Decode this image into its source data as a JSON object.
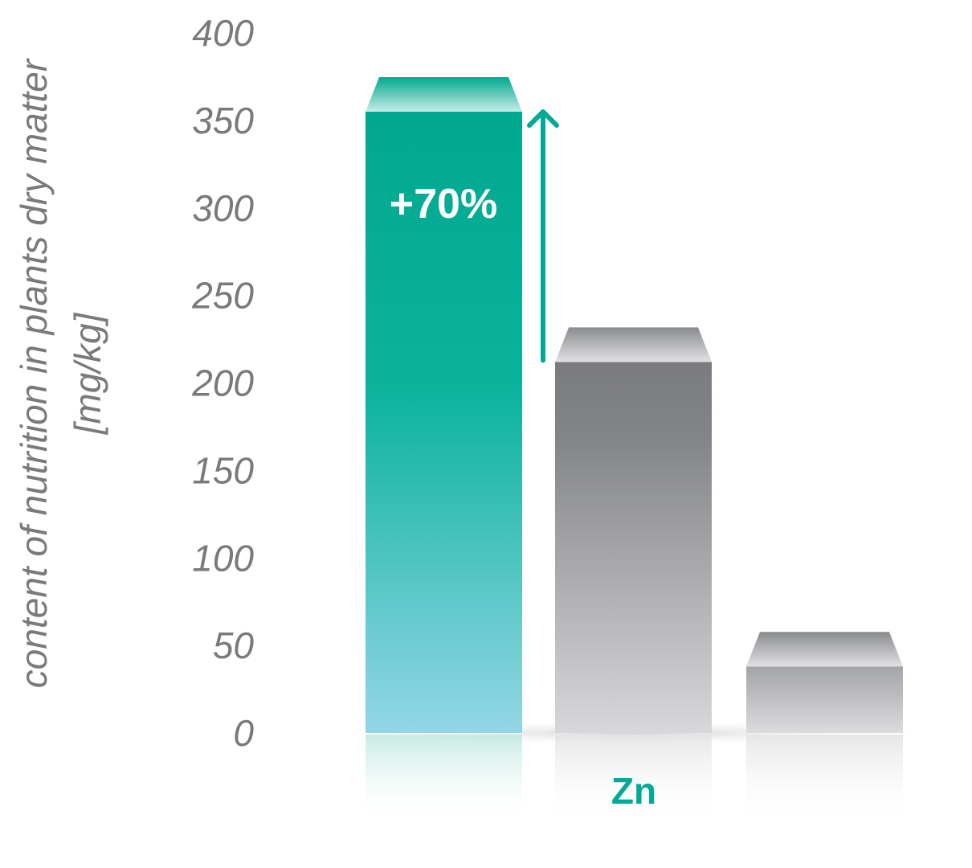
{
  "chart_data": {
    "type": "bar",
    "ylabel_line1": "content of nutrition in plants dry matter",
    "ylabel_line2": "[mg/kg]",
    "yticks": [
      "0",
      "50",
      "100",
      "150",
      "200",
      "250",
      "300",
      "350",
      "400"
    ],
    "ylim": [
      0,
      400
    ],
    "category": "Zn",
    "values": [
      355,
      212,
      38
    ],
    "annotation": "+70%",
    "grid": false,
    "colors": {
      "highlight_top": "#00a88f",
      "highlight_bottom": "#93d6e6",
      "gray_top": "#7c7d80",
      "gray_bottom": "#d8d8da",
      "accent": "#00ab95"
    }
  }
}
